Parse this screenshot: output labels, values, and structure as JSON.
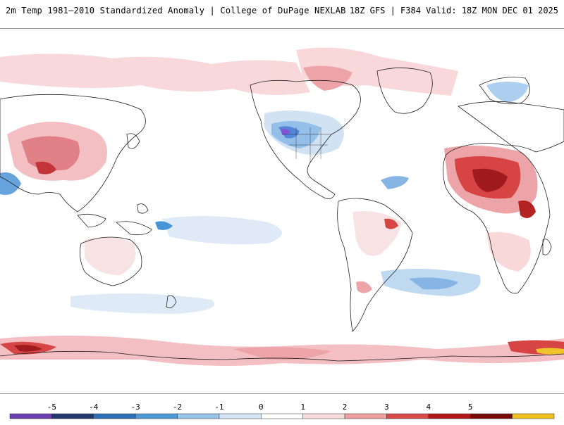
{
  "header": {
    "left_title": "2m Temp 1981–2010 Standardized Anomaly | College of DuPage NEXLAB",
    "right_title": "18Z GFS | F384 Valid: 18Z MON DEC 01 2025"
  },
  "colorbar": {
    "ticks": [
      "-5",
      "-4",
      "-3",
      "-2",
      "-1",
      "0",
      "1",
      "2",
      "3",
      "4",
      "5"
    ],
    "colors": [
      "#6a3fb0",
      "#22396e",
      "#2e6fb8",
      "#4f9bd8",
      "#98c3e8",
      "#d4e6f5",
      "#ffffff",
      "#f8dcdc",
      "#eea0a0",
      "#d94a4a",
      "#b01818",
      "#7a0a0a",
      "#f0c020"
    ]
  },
  "map": {
    "colors": {
      "ocean_base": "#ffffff",
      "light_red": "#f8d6d8",
      "mid_red": "#eca0a4",
      "strong_red": "#d43a3a",
      "deep_red": "#9a0f12",
      "light_blue": "#d6e6f6",
      "mid_blue": "#9fc6ec",
      "strong_blue": "#3f8fd8",
      "purple": "#7a4bd0",
      "coast": "#222222"
    }
  }
}
